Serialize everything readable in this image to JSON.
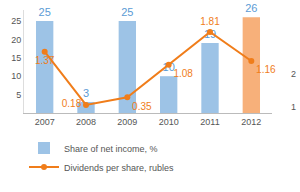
{
  "chart_data": {
    "type": "bar",
    "categories": [
      "2007",
      "2008",
      "2009",
      "2010",
      "2011",
      "2012"
    ],
    "series": [
      {
        "name": "Share of net income, %",
        "type": "bar",
        "colors": [
          "#9dc3e6",
          "#9dc3e6",
          "#9dc3e6",
          "#9dc3e6",
          "#9dc3e6",
          "#f7b07a"
        ],
        "values": [
          25,
          3,
          25,
          10,
          19,
          26
        ]
      },
      {
        "name": "Dividends per share, rubles",
        "type": "line",
        "color": "#f07d1a",
        "marker": "circle",
        "axis": "y2",
        "values": [
          1.37,
          0.18,
          0.35,
          1.08,
          1.81,
          1.16
        ]
      }
    ],
    "ylim": [
      0,
      28
    ],
    "yticks": [
      5,
      10,
      15,
      20,
      25
    ],
    "y2lim": [
      0,
      2.3
    ],
    "data_labels": true,
    "legend": "bottom left",
    "grid": false,
    "annotations": [
      "2",
      "1"
    ]
  }
}
